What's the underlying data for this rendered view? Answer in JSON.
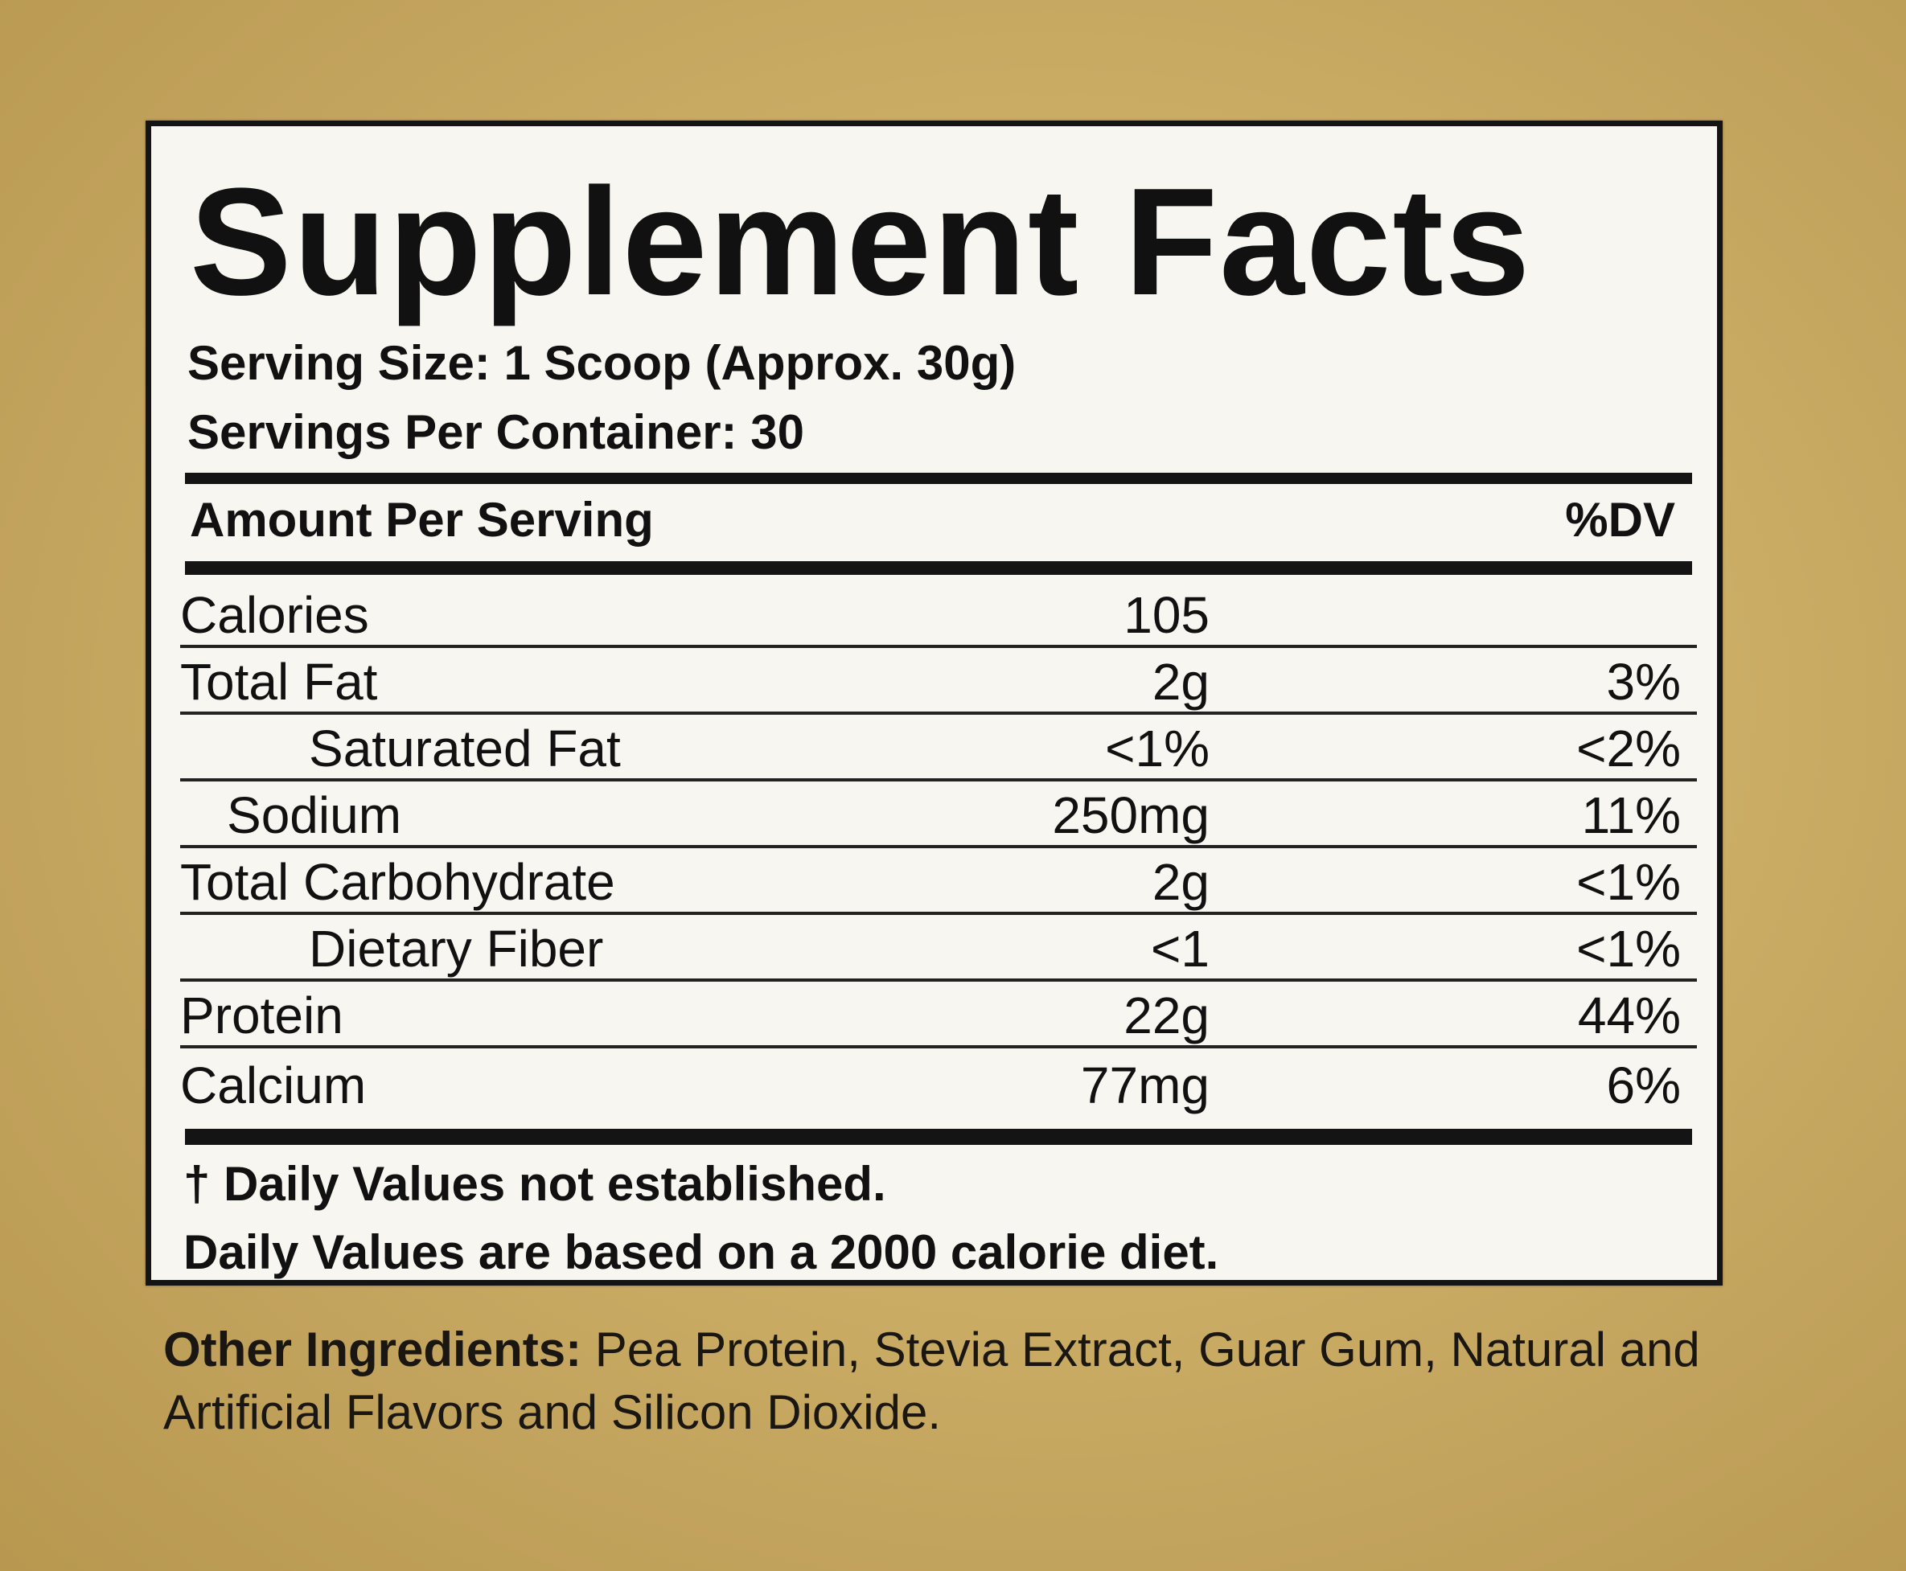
{
  "panel": {
    "title": "Supplement Facts",
    "serving_size": "Serving Size: 1 Scoop (Approx. 30g)",
    "servings_per_container": "Servings Per Container: 30",
    "amount_header": "Amount Per Serving",
    "dv_header": "%DV",
    "nutrients": [
      {
        "name": "Calories",
        "amount": "105",
        "dv": ""
      },
      {
        "name": "Total Fat",
        "amount": "2g",
        "dv": "3%"
      },
      {
        "name": "Saturated Fat",
        "amount": "<1%",
        "dv": "<2%"
      },
      {
        "name": "Sodium",
        "amount": "250mg",
        "dv": "11%"
      },
      {
        "name": "Total Carbohydrate",
        "amount": "2g",
        "dv": "<1%"
      },
      {
        "name": "Dietary Fiber",
        "amount": "<1",
        "dv": "<1%"
      },
      {
        "name": "Protein",
        "amount": "22g",
        "dv": "44%"
      },
      {
        "name": "Calcium",
        "amount": "77mg",
        "dv": "6%"
      }
    ],
    "footnote_1": "† Daily Values not established.",
    "footnote_2": "Daily Values are based on a 2000 calorie diet."
  },
  "other_ingredients": {
    "label": "Other Ingredients:",
    "text": " Pea Protein, Stevia Extract, Guar Gum, Natural and Artificial Flavors and Silicon Dioxide."
  }
}
